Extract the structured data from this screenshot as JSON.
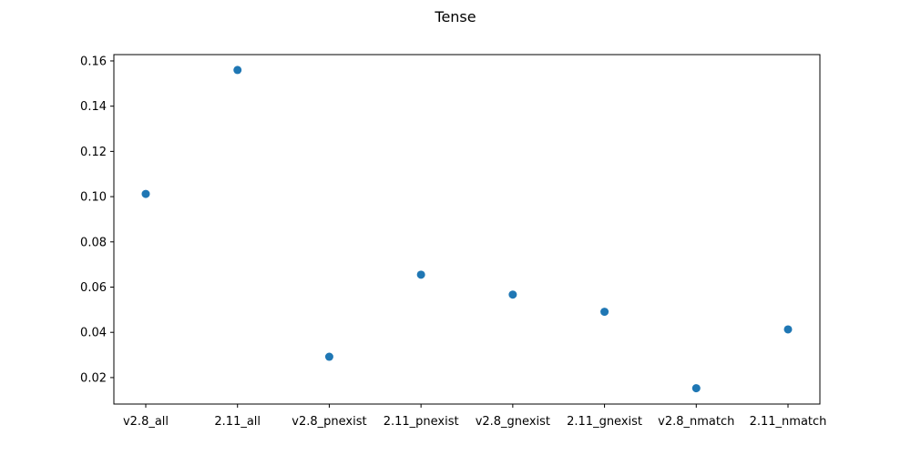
{
  "chart_data": {
    "type": "scatter",
    "title": "Tense",
    "xlabel": "",
    "ylabel": "",
    "categories": [
      "v2.8_all",
      "2.11_all",
      "v2.8_pnexist",
      "2.11_pnexist",
      "v2.8_gnexist",
      "2.11_gnexist",
      "v2.8_nmatch",
      "2.11_nmatch"
    ],
    "values": [
      0.1012,
      0.156,
      0.0292,
      0.0655,
      0.0567,
      0.0491,
      0.0153,
      0.0413
    ],
    "ylim": [
      0.0083,
      0.1628
    ],
    "yticks": [
      "0.02",
      "0.04",
      "0.06",
      "0.08",
      "0.10",
      "0.12",
      "0.14",
      "0.16"
    ],
    "grid": false,
    "marker_color": "#1f77b4"
  }
}
